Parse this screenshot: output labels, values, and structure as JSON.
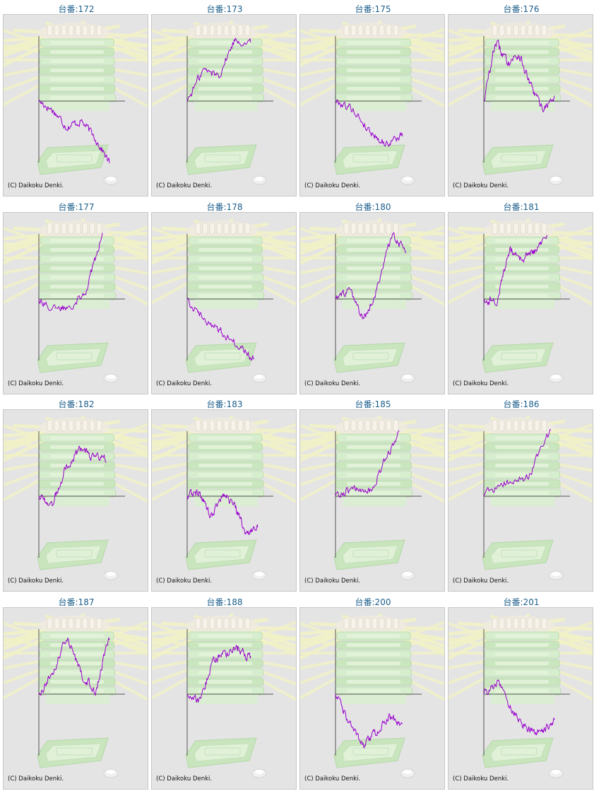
{
  "copyright": "(C) Daikoku Denki.",
  "colors": {
    "line": "#9900cc",
    "title": "#1d5f8c",
    "axis": "#555555",
    "panel_bg": "#e4e4e4"
  },
  "chart_data": [
    {
      "type": "line",
      "title": "台番:172",
      "trend": [
        0,
        -0.15,
        -0.42,
        -0.32,
        -0.6,
        -1.0
      ]
    },
    {
      "type": "line",
      "title": "台番:173",
      "trend": [
        0,
        0.48,
        0.4,
        0.95,
        0.88
      ]
    },
    {
      "type": "line",
      "title": "台番:175",
      "trend": [
        0,
        -0.12,
        -0.48,
        -0.7,
        -0.55
      ]
    },
    {
      "type": "line",
      "title": "台番:176",
      "trend": [
        0,
        0.92,
        0.6,
        0.72,
        0.22,
        -0.12,
        0.05
      ]
    },
    {
      "type": "line",
      "title": "台番:177",
      "trend": [
        0,
        -0.18,
        -0.1,
        0.15,
        1.0
      ]
    },
    {
      "type": "line",
      "title": "台番:178",
      "trend": [
        0,
        -0.32,
        -0.52,
        -0.75,
        -0.98
      ]
    },
    {
      "type": "line",
      "title": "台番:180",
      "trend": [
        0,
        0.12,
        -0.35,
        0.2,
        1.0,
        0.72
      ]
    },
    {
      "type": "line",
      "title": "台番:181",
      "trend": [
        0,
        -0.05,
        0.75,
        0.62,
        0.72,
        0.98
      ]
    },
    {
      "type": "line",
      "title": "台番:182",
      "trend": [
        0,
        -0.12,
        0.45,
        0.72,
        0.6,
        0.58
      ]
    },
    {
      "type": "line",
      "title": "台番:183",
      "trend": [
        0,
        0.08,
        -0.35,
        0.05,
        -0.12,
        -0.62,
        -0.5
      ]
    },
    {
      "type": "line",
      "title": "台番:185",
      "trend": [
        0,
        0.12,
        0.0,
        0.5,
        1.0
      ]
    },
    {
      "type": "line",
      "title": "台番:186",
      "trend": [
        0,
        0.22,
        0.3,
        1.0
      ]
    },
    {
      "type": "line",
      "title": "台番:187",
      "trend": [
        0,
        0.35,
        0.9,
        0.3,
        0.05,
        0.85
      ]
    },
    {
      "type": "line",
      "title": "台番:188",
      "trend": [
        0,
        -0.12,
        0.5,
        0.62,
        0.7,
        0.55
      ]
    },
    {
      "type": "line",
      "title": "台番:200",
      "trend": [
        0,
        -0.45,
        -0.85,
        -0.62,
        -0.35,
        -0.5
      ]
    },
    {
      "type": "line",
      "title": "台番:201",
      "trend": [
        0,
        0.2,
        -0.25,
        -0.55,
        -0.62,
        -0.42
      ]
    }
  ]
}
